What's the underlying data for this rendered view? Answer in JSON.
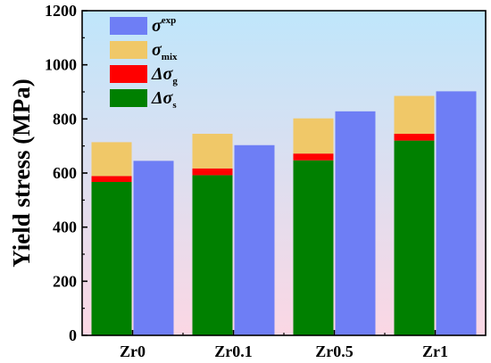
{
  "chart_data": {
    "type": "bar",
    "ylabel": "Yield stress (MPa)",
    "xlabel": "",
    "title": "",
    "ylim": [
      0,
      1200
    ],
    "yticks": [
      0,
      200,
      400,
      600,
      800,
      1000,
      1200
    ],
    "categories": [
      "Zr0",
      "Zr0.1",
      "Zr0.5",
      "Zr1"
    ],
    "stacked_series": [
      {
        "name_main": "Δσ",
        "name_sub": "s",
        "color": "#008000",
        "values": [
          567,
          592,
          647,
          720
        ]
      },
      {
        "name_main": "Δσ",
        "name_sub": "g",
        "color": "#ff0000",
        "values": [
          22,
          25,
          25,
          25
        ]
      },
      {
        "name_main": "σ",
        "name_sub": "mix",
        "color": "#f0c868",
        "values": [
          125,
          128,
          130,
          140
        ]
      }
    ],
    "exp_series": {
      "name_main": "σ",
      "name_sup": "exp",
      "color": "#6e7ef5",
      "values": [
        645,
        703,
        828,
        902
      ]
    },
    "background_gradient": [
      "#bfe6fb",
      "#fbd7e4"
    ],
    "grid": false,
    "legend_position": "top-left"
  }
}
